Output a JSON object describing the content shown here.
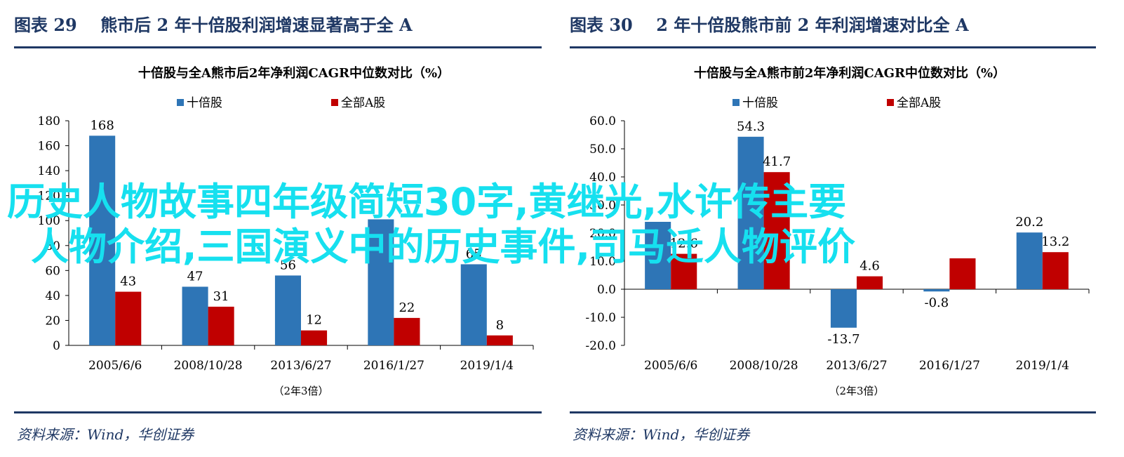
{
  "panels": [
    {
      "fig_label": "图表 29",
      "fig_title": "熊市后 2 年十倍股利润增速显著高于全 A",
      "source": "资料来源：Wind，华创证券"
    },
    {
      "fig_label": "图表 30",
      "fig_title": "2 年十倍股熊市前 2 年利润增速对比全 A",
      "source": "资料来源：Wind，华创证券"
    }
  ],
  "overlay": {
    "line1": "历史人物故事四年级简短30字,黄继光,水许传主要",
    "line2": "人物介绍,三国演义中的历史事件,司马迁人物评价"
  },
  "colors": {
    "blue": "#2e75b6",
    "red": "#c00000",
    "title": "#1f3864",
    "overlay": "#16e0ef"
  },
  "chart_data": [
    {
      "type": "bar",
      "title": "十倍股与全A熊市后2年净利润CAGR中位数对比（%）",
      "legend_position": "top",
      "categories": [
        "2005/6/6",
        "2008/10/28",
        "2013/6/27",
        "2016/1/27",
        "2019/1/4"
      ],
      "xlabel": "（2年3倍）",
      "ylabel": "",
      "ylim": [
        0,
        180
      ],
      "yticks": [
        0,
        20,
        40,
        60,
        80,
        100,
        120,
        140,
        160,
        180
      ],
      "tick_format": 0,
      "grid": false,
      "series": [
        {
          "name": "十倍股",
          "color": "#2e75b6",
          "values": [
            168,
            47,
            56,
            101,
            65
          ],
          "labels": [
            "168",
            "47",
            "56",
            "",
            "65"
          ]
        },
        {
          "name": "全部A股",
          "color": "#c00000",
          "values": [
            43,
            31,
            12,
            22,
            8
          ],
          "labels": [
            "43",
            "31",
            "12",
            "22",
            "8"
          ]
        }
      ]
    },
    {
      "type": "bar",
      "title": "十倍股与全A熊市前2年净利润CAGR中位数对比（%）",
      "legend_position": "top",
      "categories": [
        "2005/6/6",
        "2008/10/28",
        "2013/6/27",
        "2016/1/27",
        "2019/1/4"
      ],
      "xlabel": "（2年3倍）",
      "ylabel": "",
      "ylim": [
        -20,
        60
      ],
      "yticks": [
        -20,
        -10,
        0,
        10,
        20,
        30,
        40,
        50,
        60
      ],
      "tick_format": 1,
      "grid": false,
      "series": [
        {
          "name": "十倍股",
          "color": "#2e75b6",
          "values": [
            24.0,
            54.3,
            -13.7,
            -0.8,
            20.2
          ],
          "labels": [
            "",
            "54.3",
            "-13.7",
            "-0.8",
            "20.2"
          ]
        },
        {
          "name": "全部A股",
          "color": "#c00000",
          "values": [
            12.6,
            41.7,
            4.6,
            11.0,
            13.2
          ],
          "labels": [
            "12.6",
            "41.7",
            "4.6",
            "",
            "13.2"
          ]
        }
      ]
    }
  ]
}
